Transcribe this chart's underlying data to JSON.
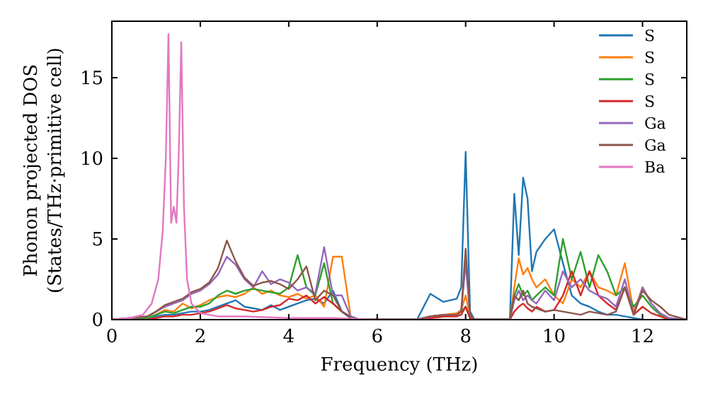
{
  "chart_data": {
    "type": "line",
    "xlabel": "Frequency (THz)",
    "ylabel": "Phonon projected DOS\n(States/THz·primitive cell)",
    "x": [
      0,
      0.4,
      0.8,
      1.0,
      1.2,
      1.4,
      1.6,
      1.8,
      2.0,
      2.2,
      2.4,
      2.6,
      2.8,
      3.0,
      3.2,
      3.4,
      3.6,
      3.8,
      4.0,
      4.2,
      4.4,
      4.6,
      4.8,
      5.0,
      5.2,
      5.4,
      5.6,
      6.0,
      6.5,
      6.9,
      7.2,
      7.5,
      7.8,
      7.9,
      8.0,
      8.1,
      8.2,
      8.6,
      9.0,
      9.1,
      9.2,
      9.3,
      9.4,
      9.5,
      9.6,
      9.8,
      10.0,
      10.2,
      10.4,
      10.6,
      10.8,
      11.0,
      11.2,
      11.4,
      11.6,
      11.8,
      12.0,
      12.2,
      12.4,
      12.6,
      13.0
    ],
    "xlim": [
      0,
      13
    ],
    "xticks": [
      0,
      2,
      4,
      6,
      8,
      10,
      12
    ],
    "ylim": [
      0,
      18.5
    ],
    "yticks": [
      0,
      5,
      10,
      15
    ],
    "grid": false,
    "legend": "top right",
    "marker": "none",
    "line_style": "solid",
    "series": [
      {
        "name": "S",
        "color": "#1f77b4",
        "values": [
          0,
          0,
          0,
          0.2,
          0.3,
          0.3,
          0.4,
          0.5,
          0.5,
          0.6,
          0.8,
          1.0,
          1.2,
          0.8,
          0.7,
          0.6,
          0.9,
          0.6,
          0.8,
          1.0,
          1.2,
          1.3,
          1.0,
          1.8,
          0.5,
          0.2,
          0,
          0,
          0,
          0,
          1.6,
          1.1,
          1.3,
          2,
          10.4,
          0.5,
          0,
          0,
          0,
          7.8,
          4,
          8.8,
          7.5,
          3,
          4.2,
          5,
          5.6,
          3.5,
          1.5,
          1,
          0.8,
          0.5,
          0.3,
          0.3,
          0.2,
          0.1,
          0,
          null,
          null,
          null,
          null
        ]
      },
      {
        "name": "S",
        "color": "#ff7f0e",
        "values": [
          null,
          null,
          0.1,
          0.3,
          0.6,
          0.5,
          1.0,
          0.7,
          0.9,
          1.2,
          1.4,
          1.5,
          1.4,
          1.6,
          2.0,
          1.6,
          1.8,
          1.5,
          1.4,
          1.6,
          1.3,
          1.5,
          0.8,
          3.9,
          3.9,
          0.2,
          0,
          0,
          0,
          0,
          0.2,
          0.3,
          0.4,
          0.6,
          1.5,
          0.2,
          0,
          0,
          0,
          2,
          3.8,
          2.8,
          3.2,
          2.5,
          2,
          2.5,
          1.5,
          1.0,
          2.5,
          2.0,
          3.0,
          2.0,
          1.8,
          1.5,
          3.5,
          0.5,
          2.0,
          1.0,
          null,
          null,
          null
        ]
      },
      {
        "name": "S",
        "color": "#2ca02c",
        "values": [
          0,
          0,
          0.1,
          0.3,
          0.5,
          0.4,
          0.6,
          0.8,
          0.8,
          1.0,
          1.5,
          1.8,
          1.6,
          1.8,
          1.9,
          1.8,
          1.7,
          1.6,
          2.0,
          4.0,
          2.0,
          1.5,
          3.5,
          1.0,
          0.5,
          0.1,
          0,
          0,
          0,
          0,
          0.1,
          0.2,
          0.3,
          0.5,
          0.8,
          0.1,
          0,
          0,
          0,
          1.5,
          2.2,
          1.5,
          1.8,
          1.2,
          1.5,
          2.0,
          1.5,
          5.0,
          2.5,
          4.2,
          2.0,
          4.0,
          3.0,
          1.5,
          2.0,
          0.8,
          1.5,
          0.8,
          0.3,
          0.1,
          0
        ]
      },
      {
        "name": "S",
        "color": "#d62728",
        "values": [
          0,
          0,
          0,
          0.1,
          0.2,
          0.2,
          0.3,
          0.3,
          0.4,
          0.5,
          0.7,
          0.9,
          0.7,
          0.6,
          0.5,
          0.6,
          0.8,
          0.9,
          1.3,
          1.2,
          1.5,
          1.0,
          1.4,
          1.0,
          0.5,
          0.1,
          0,
          0,
          0,
          0,
          0.1,
          0.2,
          0.2,
          0.3,
          0.8,
          0.1,
          0,
          0,
          0,
          0.5,
          0.8,
          1.0,
          0.7,
          0.5,
          0.8,
          0.5,
          0.6,
          1.5,
          3.0,
          1.5,
          3.0,
          1.5,
          1.0,
          0.6,
          2.0,
          0.3,
          0.8,
          0.4,
          0.2,
          0,
          0
        ]
      },
      {
        "name": "Ga",
        "color": "#9467bd",
        "values": [
          0,
          0.1,
          0.2,
          0.5,
          0.8,
          1.0,
          1.2,
          1.6,
          1.8,
          2.2,
          2.8,
          3.9,
          3.4,
          2.5,
          2.0,
          3.0,
          2.2,
          2.5,
          2.3,
          1.8,
          2.0,
          1.6,
          4.5,
          1.5,
          1.5,
          0.2,
          0,
          0,
          0,
          0,
          0.2,
          0.3,
          0.3,
          0.5,
          3.5,
          0.3,
          0,
          0,
          0,
          1.2,
          1.8,
          1.2,
          1.5,
          1.2,
          1.0,
          1.8,
          1.2,
          3.0,
          2.0,
          2.5,
          1.8,
          1.5,
          1.3,
          0.8,
          2.5,
          0.3,
          2.0,
          1.0,
          0.4,
          0.1,
          0
        ]
      },
      {
        "name": "Ga",
        "color": "#8c564b",
        "values": [
          0,
          0.1,
          0.2,
          0.5,
          0.9,
          1.1,
          1.3,
          1.7,
          1.9,
          2.3,
          3.2,
          4.9,
          3.6,
          2.6,
          2.1,
          2.3,
          2.4,
          2.2,
          1.9,
          2.5,
          3.3,
          1.2,
          1.8,
          1.5,
          0.5,
          0.1,
          0,
          0,
          0,
          0,
          0.2,
          0.3,
          0.3,
          0.5,
          4.4,
          0.3,
          0,
          0,
          0,
          1.5,
          1.2,
          1.8,
          1.0,
          0.8,
          0.7,
          0.5,
          0.6,
          0.5,
          0.4,
          0.3,
          0.5,
          0.4,
          0.3,
          0.5,
          2.0,
          0.3,
          1.8,
          1.2,
          0.8,
          0.3,
          0
        ]
      },
      {
        "name": "Ba",
        "color": "#e377c2",
        "x": [
          0,
          0.4,
          0.7,
          0.9,
          1.05,
          1.15,
          1.22,
          1.28,
          1.34,
          1.4,
          1.46,
          1.51,
          1.57,
          1.63,
          1.7,
          1.8,
          2.0,
          2.4,
          3,
          4,
          5,
          6,
          8
        ],
        "values": [
          0,
          0.1,
          0.3,
          1.0,
          2.5,
          5.5,
          10,
          17.7,
          6.0,
          7.0,
          6.0,
          10,
          17.2,
          7,
          2.5,
          1.0,
          0.4,
          0.2,
          0.2,
          0.1,
          0.1,
          0,
          0
        ]
      }
    ]
  }
}
